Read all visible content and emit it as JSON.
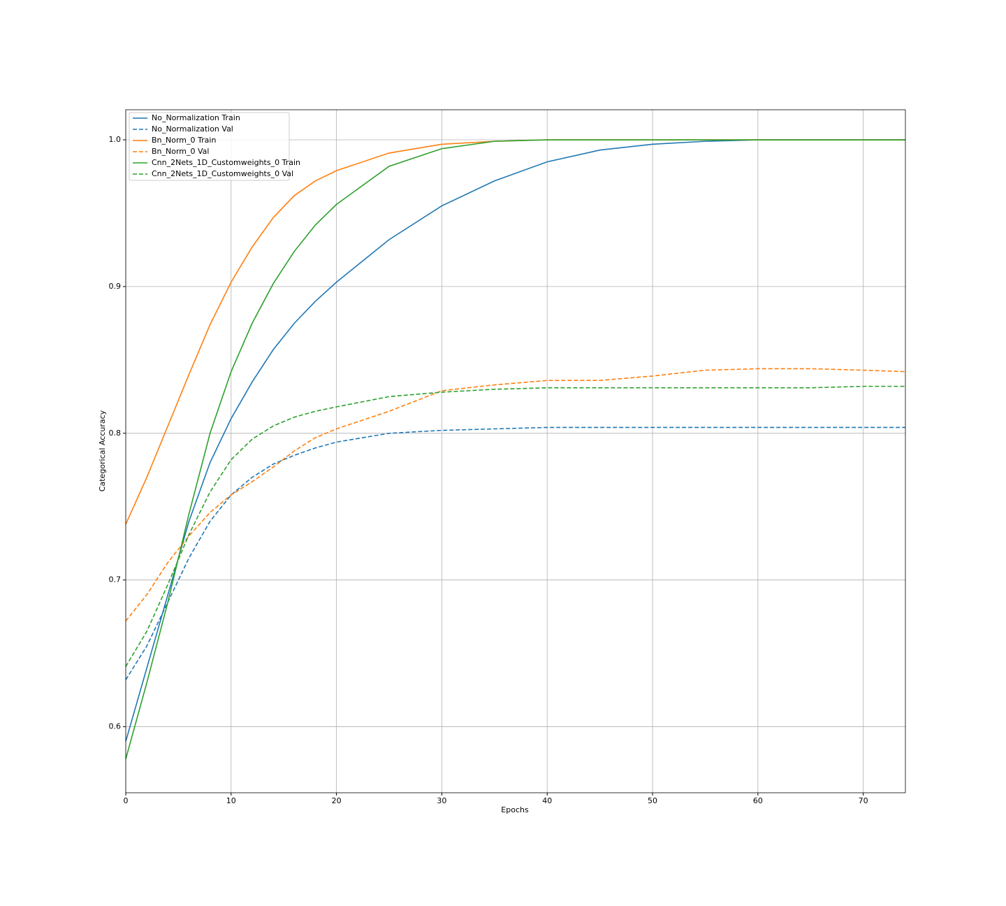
{
  "chart_data": {
    "type": "line",
    "xlabel": "Epochs",
    "ylabel": "Categorical Accuracy",
    "x": [
      0,
      2,
      4,
      6,
      8,
      10,
      12,
      14,
      16,
      18,
      20,
      25,
      30,
      35,
      40,
      45,
      50,
      55,
      60,
      65,
      70,
      74
    ],
    "series": [
      {
        "name": "No_Normalization Train",
        "color": "#1f77b4",
        "dashed": false,
        "values": [
          0.59,
          0.64,
          0.69,
          0.74,
          0.78,
          0.81,
          0.835,
          0.857,
          0.875,
          0.89,
          0.903,
          0.932,
          0.955,
          0.972,
          0.985,
          0.993,
          0.997,
          0.999,
          1.0,
          1.0,
          1.0,
          1.0
        ]
      },
      {
        "name": "No_Normalization Val",
        "color": "#1f77b4",
        "dashed": true,
        "values": [
          0.632,
          0.655,
          0.685,
          0.715,
          0.74,
          0.758,
          0.77,
          0.779,
          0.785,
          0.79,
          0.794,
          0.8,
          0.802,
          0.803,
          0.804,
          0.804,
          0.804,
          0.804,
          0.804,
          0.804,
          0.804,
          0.804
        ]
      },
      {
        "name": "Bn_Norm_0 Train",
        "color": "#ff7f0e",
        "dashed": false,
        "values": [
          0.738,
          0.77,
          0.805,
          0.84,
          0.874,
          0.903,
          0.927,
          0.947,
          0.962,
          0.972,
          0.979,
          0.991,
          0.997,
          0.999,
          1.0,
          1.0,
          1.0,
          1.0,
          1.0,
          1.0,
          1.0,
          1.0
        ]
      },
      {
        "name": "Bn_Norm_0 Val",
        "color": "#ff7f0e",
        "dashed": true,
        "values": [
          0.672,
          0.69,
          0.712,
          0.73,
          0.746,
          0.758,
          0.767,
          0.777,
          0.788,
          0.797,
          0.803,
          0.815,
          0.829,
          0.833,
          0.836,
          0.836,
          0.839,
          0.843,
          0.844,
          0.844,
          0.843,
          0.842
        ]
      },
      {
        "name": "Cnn_2Nets_1D_Customweights_0 Train",
        "color": "#2ca02c",
        "dashed": false,
        "values": [
          0.578,
          0.63,
          0.685,
          0.745,
          0.8,
          0.842,
          0.875,
          0.902,
          0.924,
          0.942,
          0.956,
          0.982,
          0.994,
          0.999,
          1.0,
          1.0,
          1.0,
          1.0,
          1.0,
          1.0,
          1.0,
          1.0
        ]
      },
      {
        "name": "Cnn_2Nets_1D_Customweights_0 Val",
        "color": "#2ca02c",
        "dashed": true,
        "values": [
          0.641,
          0.665,
          0.697,
          0.731,
          0.76,
          0.782,
          0.796,
          0.805,
          0.811,
          0.815,
          0.818,
          0.825,
          0.828,
          0.83,
          0.831,
          0.831,
          0.831,
          0.831,
          0.831,
          0.831,
          0.832,
          0.832
        ]
      }
    ],
    "xlim": [
      0,
      74
    ],
    "xticks": [
      0,
      10,
      20,
      30,
      40,
      50,
      60,
      70
    ],
    "ylim": [
      0.555,
      1.0205
    ],
    "yticks": [
      0.6,
      0.7,
      0.8,
      0.9,
      {
        "value": 1,
        "label": "1.0"
      }
    ],
    "grid": true,
    "legend": "upper-left"
  }
}
